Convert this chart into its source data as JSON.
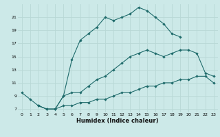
{
  "xlabel": "Humidex (Indice chaleur)",
  "bg_color": "#cce9e8",
  "grid_color": "#b8d8d6",
  "line_color": "#1f6b6b",
  "xlim": [
    -0.5,
    23.5
  ],
  "ylim": [
    6.5,
    23.0
  ],
  "xticks": [
    0,
    1,
    2,
    3,
    4,
    5,
    6,
    7,
    8,
    9,
    10,
    11,
    12,
    13,
    14,
    15,
    16,
    17,
    18,
    19,
    20,
    21,
    22,
    23
  ],
  "yticks": [
    7,
    9,
    11,
    13,
    15,
    17,
    19,
    21
  ],
  "line1_x": [
    0,
    1,
    2,
    3,
    4,
    5,
    6,
    7,
    8,
    9,
    10,
    11,
    12,
    13,
    14,
    15,
    16,
    17,
    18,
    19
  ],
  "line1_y": [
    9.5,
    8.5,
    7.5,
    7.0,
    7.0,
    9.0,
    14.5,
    17.5,
    18.5,
    19.5,
    21.0,
    20.5,
    21.0,
    21.5,
    22.5,
    22.0,
    21.0,
    20.0,
    18.5,
    18.0
  ],
  "line2_x": [
    2,
    3,
    4,
    5,
    6,
    7,
    8,
    9,
    10,
    11,
    12,
    13,
    14,
    15,
    16,
    17,
    18,
    19,
    20,
    21,
    22,
    23
  ],
  "line2_y": [
    7.5,
    7.0,
    7.0,
    9.0,
    9.5,
    9.5,
    10.5,
    11.5,
    12.0,
    13.0,
    14.0,
    15.0,
    15.5,
    16.0,
    15.5,
    15.0,
    15.5,
    16.0,
    16.0,
    15.5,
    12.5,
    12.0
  ],
  "line3_x": [
    2,
    3,
    4,
    5,
    6,
    7,
    8,
    9,
    10,
    11,
    12,
    13,
    14,
    15,
    16,
    17,
    18,
    19,
    20,
    21,
    22,
    23
  ],
  "line3_y": [
    7.5,
    7.0,
    7.0,
    7.5,
    7.5,
    8.0,
    8.0,
    8.5,
    8.5,
    9.0,
    9.5,
    9.5,
    10.0,
    10.5,
    10.5,
    11.0,
    11.0,
    11.5,
    11.5,
    12.0,
    12.0,
    11.0
  ]
}
